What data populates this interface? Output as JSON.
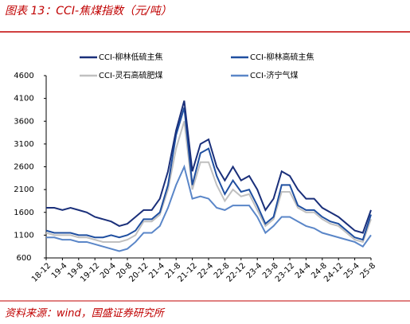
{
  "chart_data": {
    "type": "line",
    "title": "图表 13：CCI-焦煤指数（元/吨）",
    "source": "资料来源：wind，国盛证券研究所",
    "categories": [
      "18-12",
      null,
      "19-4",
      null,
      "19-8",
      null,
      "19-12",
      null,
      "20-4",
      null,
      "20-8",
      null,
      "20-12",
      null,
      "21-4",
      null,
      "21-8",
      null,
      "21-12",
      null,
      "22-4",
      null,
      "22-8",
      null,
      "22-12",
      null,
      "23-4",
      null,
      "23-8",
      null,
      "23-12",
      null,
      "24-4",
      null,
      "24-8",
      null,
      "24-12",
      null,
      "25-4",
      null,
      "25-8"
    ],
    "series": [
      {
        "name": "CCI-柳林低硫主焦",
        "color": "#1a2f7a",
        "values": [
          1700,
          1700,
          1650,
          1700,
          1650,
          1600,
          1500,
          1450,
          1400,
          1300,
          1350,
          1500,
          1650,
          1650,
          1900,
          2500,
          3400,
          4050,
          2500,
          3100,
          3200,
          2600,
          2300,
          2600,
          2300,
          2400,
          2100,
          1650,
          1900,
          2500,
          2400,
          2100,
          1900,
          1900,
          1700,
          1600,
          1500,
          1350,
          1200,
          1150,
          1650
        ]
      },
      {
        "name": "CCI-柳林高硫主焦",
        "color": "#1f4fa0",
        "values": [
          1200,
          1150,
          1150,
          1150,
          1100,
          1100,
          1050,
          1050,
          1100,
          1050,
          1100,
          1200,
          1450,
          1450,
          1600,
          2200,
          3300,
          3900,
          2200,
          2900,
          3000,
          2400,
          2000,
          2300,
          2050,
          2100,
          1750,
          1350,
          1500,
          2200,
          2200,
          1750,
          1650,
          1650,
          1500,
          1400,
          1350,
          1200,
          1050,
          1000,
          1550
        ]
      },
      {
        "name": "CCI-灵石高硫肥煤",
        "color": "#c0c0c0",
        "values": [
          1150,
          1100,
          1100,
          1100,
          1050,
          1050,
          1000,
          950,
          950,
          950,
          1000,
          1100,
          1400,
          1400,
          1550,
          2100,
          3000,
          3600,
          2100,
          2700,
          2700,
          2200,
          1850,
          2100,
          1950,
          2000,
          1650,
          1300,
          1450,
          2050,
          2050,
          1700,
          1600,
          1600,
          1450,
          1350,
          1300,
          1150,
          1000,
          950,
          1450
        ]
      },
      {
        "name": "CCI-济宁气煤",
        "color": "#5a86c8",
        "values": [
          1050,
          1050,
          1000,
          1000,
          950,
          950,
          900,
          850,
          800,
          750,
          800,
          950,
          1150,
          1150,
          1300,
          1700,
          2200,
          2600,
          1900,
          1950,
          1900,
          1700,
          1650,
          1750,
          1750,
          1750,
          1500,
          1150,
          1300,
          1500,
          1500,
          1400,
          1300,
          1250,
          1150,
          1100,
          1050,
          1000,
          950,
          850,
          1100
        ]
      }
    ],
    "ylim": [
      600,
      4600
    ],
    "yticks": [
      600,
      1100,
      1600,
      2100,
      2600,
      3100,
      3600,
      4100,
      4600
    ]
  }
}
